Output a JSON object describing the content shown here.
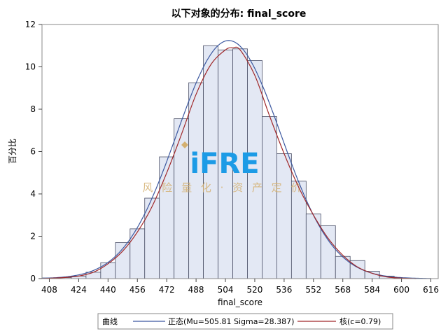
{
  "chart_data": {
    "type": "bar",
    "subtype": "histogram",
    "title": "以下对象的分布: final_score",
    "xlabel": "final_score",
    "ylabel": "百分比",
    "xlim": [
      404,
      620
    ],
    "ylim": [
      0,
      12
    ],
    "x_ticks": [
      408,
      424,
      440,
      456,
      472,
      488,
      504,
      520,
      536,
      552,
      568,
      584,
      600,
      616
    ],
    "y_ticks": [
      0,
      2,
      4,
      6,
      8,
      10,
      12
    ],
    "bin_width": 8,
    "bins": [
      {
        "x": 408,
        "value": 0.03
      },
      {
        "x": 416,
        "value": 0.05
      },
      {
        "x": 424,
        "value": 0.12
      },
      {
        "x": 432,
        "value": 0.3
      },
      {
        "x": 440,
        "value": 0.75
      },
      {
        "x": 448,
        "value": 1.7
      },
      {
        "x": 456,
        "value": 2.35
      },
      {
        "x": 464,
        "value": 3.8
      },
      {
        "x": 472,
        "value": 5.75
      },
      {
        "x": 480,
        "value": 7.55
      },
      {
        "x": 488,
        "value": 9.25
      },
      {
        "x": 496,
        "value": 11.0
      },
      {
        "x": 504,
        "value": 10.8
      },
      {
        "x": 512,
        "value": 10.85
      },
      {
        "x": 520,
        "value": 10.3
      },
      {
        "x": 528,
        "value": 7.65
      },
      {
        "x": 536,
        "value": 5.9
      },
      {
        "x": 544,
        "value": 4.6
      },
      {
        "x": 552,
        "value": 3.05
      },
      {
        "x": 560,
        "value": 2.5
      },
      {
        "x": 568,
        "value": 1.05
      },
      {
        "x": 576,
        "value": 0.85
      },
      {
        "x": 584,
        "value": 0.35
      },
      {
        "x": 592,
        "value": 0.12
      },
      {
        "x": 600,
        "value": 0.03
      }
    ],
    "normal": {
      "mu": 505.81,
      "sigma": 28.387
    },
    "kernel": {
      "x": [
        404,
        416,
        424,
        432,
        440,
        448,
        456,
        464,
        472,
        480,
        488,
        496,
        504,
        508,
        512,
        520,
        528,
        536,
        544,
        552,
        560,
        568,
        576,
        584,
        592,
        600,
        608
      ],
      "y": [
        0.0,
        0.05,
        0.12,
        0.3,
        0.7,
        1.3,
        2.2,
        3.4,
        5.0,
        6.8,
        8.7,
        10.1,
        10.8,
        10.9,
        10.8,
        9.6,
        7.7,
        5.9,
        4.3,
        3.0,
        1.9,
        1.1,
        0.55,
        0.25,
        0.08,
        0.02,
        0.0
      ]
    },
    "legend": {
      "placement": "bottom",
      "title": "曲线",
      "entries": [
        {
          "label": "正态(Mu=505.81 Sigma=28.387)",
          "color": "#3c58a0"
        },
        {
          "label": "核(c=0.79)",
          "color": "#a0282a"
        }
      ]
    },
    "colors": {
      "bar_fill": "#e3e8f4",
      "bar_stroke": "#4a4f66",
      "normal": "#3c58a0",
      "kernel": "#a0282a"
    },
    "grid": false
  },
  "watermark": {
    "logo_text": "iFRE",
    "subtitle": "风 险 量 化 · 资 产 定 价"
  }
}
